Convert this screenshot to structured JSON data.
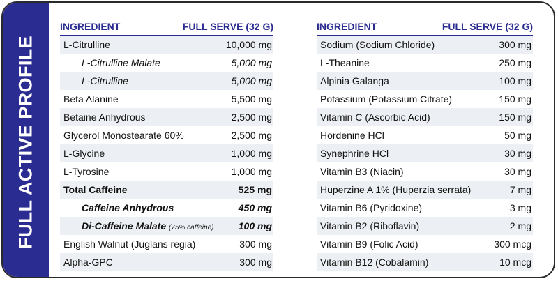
{
  "side_title": "FULL ACTIVE PROFILE",
  "left": {
    "header_ingredient": "INGREDIENT",
    "header_serve": "FULL SERVE (32 G)",
    "rows": [
      {
        "name": "L-Citrulline",
        "value": "10,000 mg"
      },
      {
        "name": "L-Citrulline Malate",
        "value": "5,000 mg"
      },
      {
        "name": "L-Citrulline",
        "value": "5,000 mg"
      },
      {
        "name": "Beta Alanine",
        "value": "5,500 mg"
      },
      {
        "name": "Betaine Anhydrous",
        "value": "2,500 mg"
      },
      {
        "name": "Glycerol Monostearate 60%",
        "value": "2,500 mg"
      },
      {
        "name": "L-Glycine",
        "value": "1,000 mg"
      },
      {
        "name": "L-Tyrosine",
        "value": "1,000 mg"
      },
      {
        "name": "Total Caffeine",
        "value": "525 mg"
      },
      {
        "name": "Caffeine Anhydrous",
        "value": "450 mg"
      },
      {
        "name": "Di-Caffeine Malate",
        "note": "(75% caffeine)",
        "value": "100 mg"
      },
      {
        "name": "English Walnut (Juglans regia)",
        "value": "300 mg"
      },
      {
        "name": "Alpha-GPC",
        "value": "300 mg"
      }
    ]
  },
  "right": {
    "header_ingredient": "INGREDIENT",
    "header_serve": "FULL SERVE (32 G)",
    "rows": [
      {
        "name": "Sodium (Sodium Chloride)",
        "value": "300 mg"
      },
      {
        "name": "L-Theanine",
        "value": "250 mg"
      },
      {
        "name": "Alpinia Galanga",
        "value": "100 mg"
      },
      {
        "name": "Potassium (Potassium Citrate)",
        "value": "150 mg"
      },
      {
        "name": "Vitamin C (Ascorbic Acid)",
        "value": "150 mg"
      },
      {
        "name": "Hordenine HCl",
        "value": "50 mg"
      },
      {
        "name": "Synephrine HCl",
        "value": "30 mg"
      },
      {
        "name": "Vitamin B3 (Niacin)",
        "value": "30 mg"
      },
      {
        "name": "Huperzine A 1% (Huperzia serrata)",
        "value": "7 mg"
      },
      {
        "name": "Vitamin B6 (Pyridoxine)",
        "value": "3 mg"
      },
      {
        "name": "Vitamin B2 (Riboflavin)",
        "value": "2 mg"
      },
      {
        "name": "Vitamin B9 (Folic Acid)",
        "value": "300 mcg"
      },
      {
        "name": "Vitamin B12 (Cobalamin)",
        "value": "10 mcg"
      }
    ]
  },
  "colors": {
    "accent": "#2b2c91",
    "stripe": "#eceff4"
  }
}
